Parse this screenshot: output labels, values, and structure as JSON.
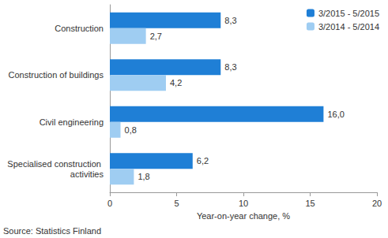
{
  "chart_data": {
    "type": "bar",
    "orientation": "horizontal",
    "categories": [
      "Construction",
      "Construction of buildings",
      "Civil engineering",
      "Specialised construction activities"
    ],
    "series": [
      {
        "name": "3/2015 - 5/2015",
        "color": "#1f7fd6",
        "values": [
          8.3,
          8.3,
          16.0,
          6.2
        ],
        "value_labels": [
          "8,3",
          "8,3",
          "16,0",
          "6,2"
        ]
      },
      {
        "name": "3/2014 - 5/2014",
        "color": "#9fcdf2",
        "values": [
          2.7,
          4.2,
          0.8,
          1.8
        ],
        "value_labels": [
          "2,7",
          "4,2",
          "0,8",
          "1,8"
        ]
      }
    ],
    "x_label": "Year-on-year change, %",
    "xlim": [
      0,
      20
    ],
    "xticks": [
      0,
      5,
      10,
      15,
      20
    ],
    "grid": false,
    "legend": "top-right",
    "data_labels": true,
    "annotations": [
      "Source: Statistics Finland"
    ]
  }
}
